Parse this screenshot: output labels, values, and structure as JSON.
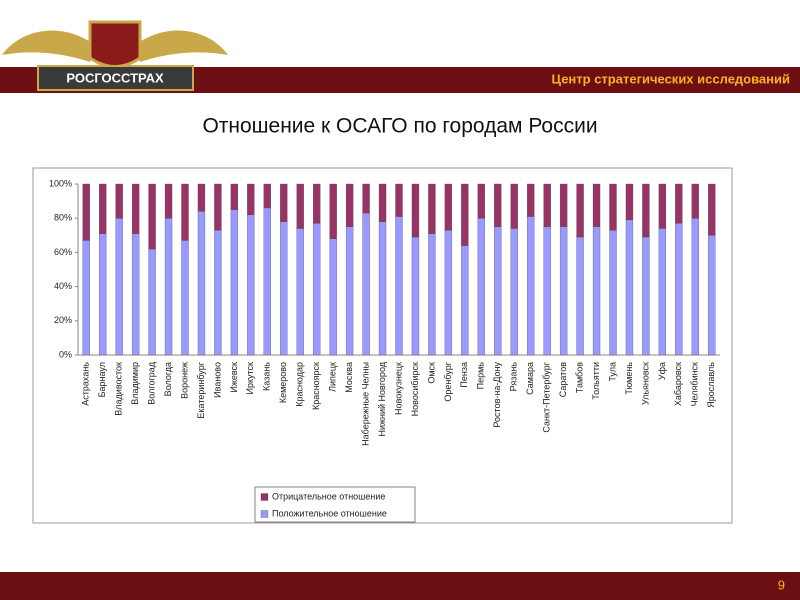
{
  "logo_text": "РОСГОССТРАХ",
  "header": "Центр стратегических исследований",
  "page_number": 9,
  "chart_data": {
    "type": "stacked_bar",
    "title": "Отношение к ОСАГО по городам России",
    "categories": [
      "Астрахань",
      "Барнаул",
      "Владивосток",
      "Владимир",
      "Волгоград",
      "Вологда",
      "Воронеж",
      "Екатеринбург",
      "Иваново",
      "Ижевск",
      "Иркутск",
      "Казань",
      "Кемерово",
      "Краснодар",
      "Красноярск",
      "Липецк",
      "Москва",
      "Набережные Челны",
      "Нижний Новгород",
      "Новокузнецк",
      "Новосибирск",
      "Омск",
      "Оренбург",
      "Пенза",
      "Пермь",
      "Ростов-на-Дону",
      "Рязань",
      "Самара",
      "Санкт-Петербург",
      "Саратов",
      "Тамбов",
      "Тольятти",
      "Тула",
      "Тюмень",
      "Ульяновск",
      "Уфа",
      "Хабаровск",
      "Челябинск",
      "Ярославль"
    ],
    "series": [
      {
        "name": "Отрицательное отношение",
        "color": "#993366",
        "values": [
          33,
          29,
          20,
          29,
          38,
          20,
          33,
          16,
          27,
          15,
          18,
          14,
          22,
          26,
          23,
          32,
          25,
          17,
          22,
          19,
          31,
          29,
          27,
          36,
          20,
          25,
          26,
          19,
          25,
          25,
          31,
          25,
          27,
          21,
          31,
          26,
          23,
          20,
          30
        ]
      },
      {
        "name": "Положительное отношение",
        "color": "#9999ff",
        "values": [
          67,
          71,
          80,
          71,
          62,
          80,
          67,
          84,
          73,
          85,
          82,
          86,
          78,
          74,
          77,
          68,
          75,
          83,
          78,
          81,
          69,
          71,
          73,
          64,
          80,
          75,
          74,
          81,
          75,
          75,
          69,
          75,
          73,
          79,
          69,
          74,
          77,
          80,
          70
        ]
      }
    ],
    "ylim": [
      0,
      100
    ],
    "yticks": [
      {
        "value": 0,
        "label": "0%"
      },
      {
        "value": 20,
        "label": "20%"
      },
      {
        "value": 40,
        "label": "40%"
      },
      {
        "value": 60,
        "label": "60%"
      },
      {
        "value": 80,
        "label": "80%"
      },
      {
        "value": 100,
        "label": "100%"
      }
    ],
    "legend": "bottom"
  }
}
